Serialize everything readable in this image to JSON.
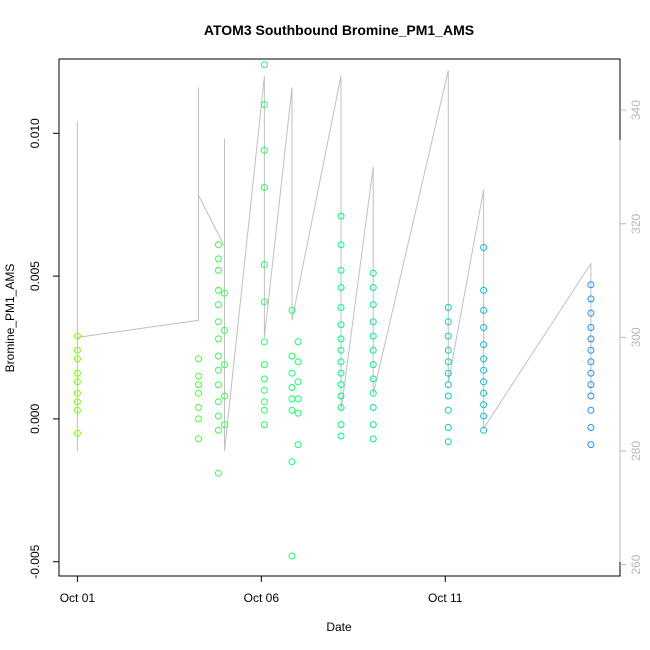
{
  "chart_data": {
    "type": "scatter",
    "title": "ATOM3 Southbound Bromine_PM1_AMS",
    "xlabel": "Date",
    "ylabel": "Bromine_PM1_AMS",
    "x_ticks": [
      "Oct 01",
      "Oct 06",
      "Oct 11"
    ],
    "y_ticks": [
      "-0.005",
      "0.000",
      "0.005",
      "0.010"
    ],
    "y_tick_values": [
      -0.005,
      0.0,
      0.005,
      0.01
    ],
    "y2_ticks": [
      "260",
      "280",
      "300",
      "320",
      "340"
    ],
    "y2_tick_values": [
      260,
      280,
      300,
      320,
      340
    ],
    "xlim": [
      "2016-09-30T12:00",
      "2016-10-15T18:00"
    ],
    "ylim": [
      -0.0055,
      0.0126
    ],
    "y2lim": [
      258,
      349
    ],
    "grid": false,
    "legend": "none",
    "colors": {
      "points_start": "#7fff00",
      "points_mid": "#00ff7f",
      "points_end": "#1e90ff",
      "line": "#c0c0c0",
      "right_axis": "#b8b8b8"
    },
    "series": [
      {
        "type": "points",
        "points": [
          {
            "x": "2016-10-01T00:00",
            "y": 0.0024
          },
          {
            "x": "2016-10-01T00:00",
            "y": 0.0016
          },
          {
            "x": "2016-10-01T00:00",
            "y": 0.0009
          },
          {
            "x": "2016-10-01T00:00",
            "y": 0.0006
          },
          {
            "x": "2016-10-01T00:00",
            "y": 0.0003
          },
          {
            "x": "2016-10-01T00:00",
            "y": -0.0005
          },
          {
            "x": "2016-10-01T00:00",
            "y": 0.0029
          },
          {
            "x": "2016-10-01T00:00",
            "y": 0.0021
          },
          {
            "x": "2016-10-01T00:00",
            "y": 0.0013
          },
          {
            "x": "2016-10-04T07:00",
            "y": 0.0021
          },
          {
            "x": "2016-10-04T07:00",
            "y": 0.0015
          },
          {
            "x": "2016-10-04T07:00",
            "y": 0.0012
          },
          {
            "x": "2016-10-04T07:00",
            "y": 0.0009
          },
          {
            "x": "2016-10-04T07:00",
            "y": 0.0004
          },
          {
            "x": "2016-10-04T07:00",
            "y": 0.0
          },
          {
            "x": "2016-10-04T07:00",
            "y": -0.0007
          },
          {
            "x": "2016-10-04T20:00",
            "y": 0.0061
          },
          {
            "x": "2016-10-04T20:00",
            "y": 0.0056
          },
          {
            "x": "2016-10-04T20:00",
            "y": 0.0052
          },
          {
            "x": "2016-10-04T20:00",
            "y": 0.0045
          },
          {
            "x": "2016-10-04T20:00",
            "y": 0.004
          },
          {
            "x": "2016-10-04T20:00",
            "y": 0.0034
          },
          {
            "x": "2016-10-04T20:00",
            "y": 0.0028
          },
          {
            "x": "2016-10-04T20:00",
            "y": 0.0022
          },
          {
            "x": "2016-10-04T20:00",
            "y": 0.0017
          },
          {
            "x": "2016-10-04T20:00",
            "y": 0.0012
          },
          {
            "x": "2016-10-04T20:00",
            "y": 0.0006
          },
          {
            "x": "2016-10-04T20:00",
            "y": 0.0001
          },
          {
            "x": "2016-10-04T20:00",
            "y": -0.0004
          },
          {
            "x": "2016-10-04T20:00",
            "y": -0.0019
          },
          {
            "x": "2016-10-05T00:00",
            "y": 0.0044
          },
          {
            "x": "2016-10-05T00:00",
            "y": 0.0031
          },
          {
            "x": "2016-10-05T00:00",
            "y": 0.0019
          },
          {
            "x": "2016-10-05T00:00",
            "y": 0.0008
          },
          {
            "x": "2016-10-05T00:00",
            "y": -0.0002
          },
          {
            "x": "2016-10-06T02:00",
            "y": 0.0124
          },
          {
            "x": "2016-10-06T02:00",
            "y": 0.011
          },
          {
            "x": "2016-10-06T02:00",
            "y": 0.0094
          },
          {
            "x": "2016-10-06T02:00",
            "y": 0.0081
          },
          {
            "x": "2016-10-06T02:00",
            "y": 0.0054
          },
          {
            "x": "2016-10-06T02:00",
            "y": 0.0041
          },
          {
            "x": "2016-10-06T02:00",
            "y": 0.0027
          },
          {
            "x": "2016-10-06T02:00",
            "y": 0.0019
          },
          {
            "x": "2016-10-06T02:00",
            "y": 0.0014
          },
          {
            "x": "2016-10-06T02:00",
            "y": 0.001
          },
          {
            "x": "2016-10-06T02:00",
            "y": 0.0006
          },
          {
            "x": "2016-10-06T02:00",
            "y": 0.0003
          },
          {
            "x": "2016-10-06T02:00",
            "y": -0.0002
          },
          {
            "x": "2016-10-06T20:00",
            "y": 0.0038
          },
          {
            "x": "2016-10-06T20:00",
            "y": 0.0022
          },
          {
            "x": "2016-10-06T20:00",
            "y": 0.0016
          },
          {
            "x": "2016-10-06T20:00",
            "y": 0.0011
          },
          {
            "x": "2016-10-06T20:00",
            "y": 0.0007
          },
          {
            "x": "2016-10-06T20:00",
            "y": 0.0003
          },
          {
            "x": "2016-10-06T20:00",
            "y": -0.0015
          },
          {
            "x": "2016-10-06T20:00",
            "y": -0.0048
          },
          {
            "x": "2016-10-07T00:00",
            "y": 0.0027
          },
          {
            "x": "2016-10-07T00:00",
            "y": 0.002
          },
          {
            "x": "2016-10-07T00:00",
            "y": 0.0013
          },
          {
            "x": "2016-10-07T00:00",
            "y": 0.0007
          },
          {
            "x": "2016-10-07T00:00",
            "y": 0.0002
          },
          {
            "x": "2016-10-07T00:00",
            "y": -0.0009
          },
          {
            "x": "2016-10-08T04:00",
            "y": 0.0071
          },
          {
            "x": "2016-10-08T04:00",
            "y": 0.0061
          },
          {
            "x": "2016-10-08T04:00",
            "y": 0.0052
          },
          {
            "x": "2016-10-08T04:00",
            "y": 0.0046
          },
          {
            "x": "2016-10-08T04:00",
            "y": 0.0039
          },
          {
            "x": "2016-10-08T04:00",
            "y": 0.0033
          },
          {
            "x": "2016-10-08T04:00",
            "y": 0.0028
          },
          {
            "x": "2016-10-08T04:00",
            "y": 0.0024
          },
          {
            "x": "2016-10-08T04:00",
            "y": 0.002
          },
          {
            "x": "2016-10-08T04:00",
            "y": 0.0016
          },
          {
            "x": "2016-10-08T04:00",
            "y": 0.0012
          },
          {
            "x": "2016-10-08T04:00",
            "y": 0.0008
          },
          {
            "x": "2016-10-08T04:00",
            "y": 0.0004
          },
          {
            "x": "2016-10-08T04:00",
            "y": -0.0002
          },
          {
            "x": "2016-10-08T04:00",
            "y": -0.0006
          },
          {
            "x": "2016-10-09T01:00",
            "y": 0.0051
          },
          {
            "x": "2016-10-09T01:00",
            "y": 0.0046
          },
          {
            "x": "2016-10-09T01:00",
            "y": 0.004
          },
          {
            "x": "2016-10-09T01:00",
            "y": 0.0034
          },
          {
            "x": "2016-10-09T01:00",
            "y": 0.0029
          },
          {
            "x": "2016-10-09T01:00",
            "y": 0.0024
          },
          {
            "x": "2016-10-09T01:00",
            "y": 0.0019
          },
          {
            "x": "2016-10-09T01:00",
            "y": 0.0014
          },
          {
            "x": "2016-10-09T01:00",
            "y": 0.0009
          },
          {
            "x": "2016-10-09T01:00",
            "y": 0.0004
          },
          {
            "x": "2016-10-09T01:00",
            "y": -0.0002
          },
          {
            "x": "2016-10-09T01:00",
            "y": -0.0007
          },
          {
            "x": "2016-10-11T02:00",
            "y": 0.0039
          },
          {
            "x": "2016-10-11T02:00",
            "y": 0.0034
          },
          {
            "x": "2016-10-11T02:00",
            "y": 0.0029
          },
          {
            "x": "2016-10-11T02:00",
            "y": 0.0024
          },
          {
            "x": "2016-10-11T02:00",
            "y": 0.002
          },
          {
            "x": "2016-10-11T02:00",
            "y": 0.0016
          },
          {
            "x": "2016-10-11T02:00",
            "y": 0.0012
          },
          {
            "x": "2016-10-11T02:00",
            "y": 0.0008
          },
          {
            "x": "2016-10-11T02:00",
            "y": 0.0003
          },
          {
            "x": "2016-10-11T02:00",
            "y": -0.0003
          },
          {
            "x": "2016-10-11T02:00",
            "y": -0.0008
          },
          {
            "x": "2016-10-12T01:00",
            "y": 0.006
          },
          {
            "x": "2016-10-12T01:00",
            "y": 0.0045
          },
          {
            "x": "2016-10-12T01:00",
            "y": 0.0038
          },
          {
            "x": "2016-10-12T01:00",
            "y": 0.0032
          },
          {
            "x": "2016-10-12T01:00",
            "y": 0.0026
          },
          {
            "x": "2016-10-12T01:00",
            "y": 0.0021
          },
          {
            "x": "2016-10-12T01:00",
            "y": 0.0017
          },
          {
            "x": "2016-10-12T01:00",
            "y": 0.0013
          },
          {
            "x": "2016-10-12T01:00",
            "y": 0.0009
          },
          {
            "x": "2016-10-12T01:00",
            "y": 0.0005
          },
          {
            "x": "2016-10-12T01:00",
            "y": 0.0001
          },
          {
            "x": "2016-10-12T01:00",
            "y": -0.0004
          },
          {
            "x": "2016-10-14T23:00",
            "y": 0.0047
          },
          {
            "x": "2016-10-14T23:00",
            "y": 0.0042
          },
          {
            "x": "2016-10-14T23:00",
            "y": 0.0037
          },
          {
            "x": "2016-10-14T23:00",
            "y": 0.0032
          },
          {
            "x": "2016-10-14T23:00",
            "y": 0.0028
          },
          {
            "x": "2016-10-14T23:00",
            "y": 0.0024
          },
          {
            "x": "2016-10-14T23:00",
            "y": 0.002
          },
          {
            "x": "2016-10-14T23:00",
            "y": 0.0016
          },
          {
            "x": "2016-10-14T23:00",
            "y": 0.0012
          },
          {
            "x": "2016-10-14T23:00",
            "y": 0.0008
          },
          {
            "x": "2016-10-14T23:00",
            "y": 0.0003
          },
          {
            "x": "2016-10-14T23:00",
            "y": -0.0003
          },
          {
            "x": "2016-10-14T23:00",
            "y": -0.0009
          }
        ]
      },
      {
        "type": "line",
        "axis": "right",
        "points": [
          {
            "x": "2016-10-01T00:00",
            "y": 280
          },
          {
            "x": "2016-10-01T00:00",
            "y": 338
          },
          {
            "x": "2016-10-01T00:00",
            "y": 300
          },
          {
            "x": "2016-10-04T07:00",
            "y": 303
          },
          {
            "x": "2016-10-04T07:00",
            "y": 344
          },
          {
            "x": "2016-10-04T07:00",
            "y": 325
          },
          {
            "x": "2016-10-05T00:00",
            "y": 316
          },
          {
            "x": "2016-10-05T00:00",
            "y": 335
          },
          {
            "x": "2016-10-05T00:00",
            "y": 280
          },
          {
            "x": "2016-10-06T02:00",
            "y": 346
          },
          {
            "x": "2016-10-06T02:00",
            "y": 300
          },
          {
            "x": "2016-10-06T20:00",
            "y": 344
          },
          {
            "x": "2016-10-06T20:00",
            "y": 303
          },
          {
            "x": "2016-10-08T04:00",
            "y": 346
          },
          {
            "x": "2016-10-08T04:00",
            "y": 287
          },
          {
            "x": "2016-10-09T01:00",
            "y": 330
          },
          {
            "x": "2016-10-09T01:00",
            "y": 290
          },
          {
            "x": "2016-10-11T02:00",
            "y": 347
          },
          {
            "x": "2016-10-11T02:00",
            "y": 292
          },
          {
            "x": "2016-10-12T01:00",
            "y": 326
          },
          {
            "x": "2016-10-12T01:00",
            "y": 284
          },
          {
            "x": "2016-10-14T23:00",
            "y": 313
          },
          {
            "x": "2016-10-14T23:00",
            "y": 290
          }
        ]
      }
    ]
  }
}
